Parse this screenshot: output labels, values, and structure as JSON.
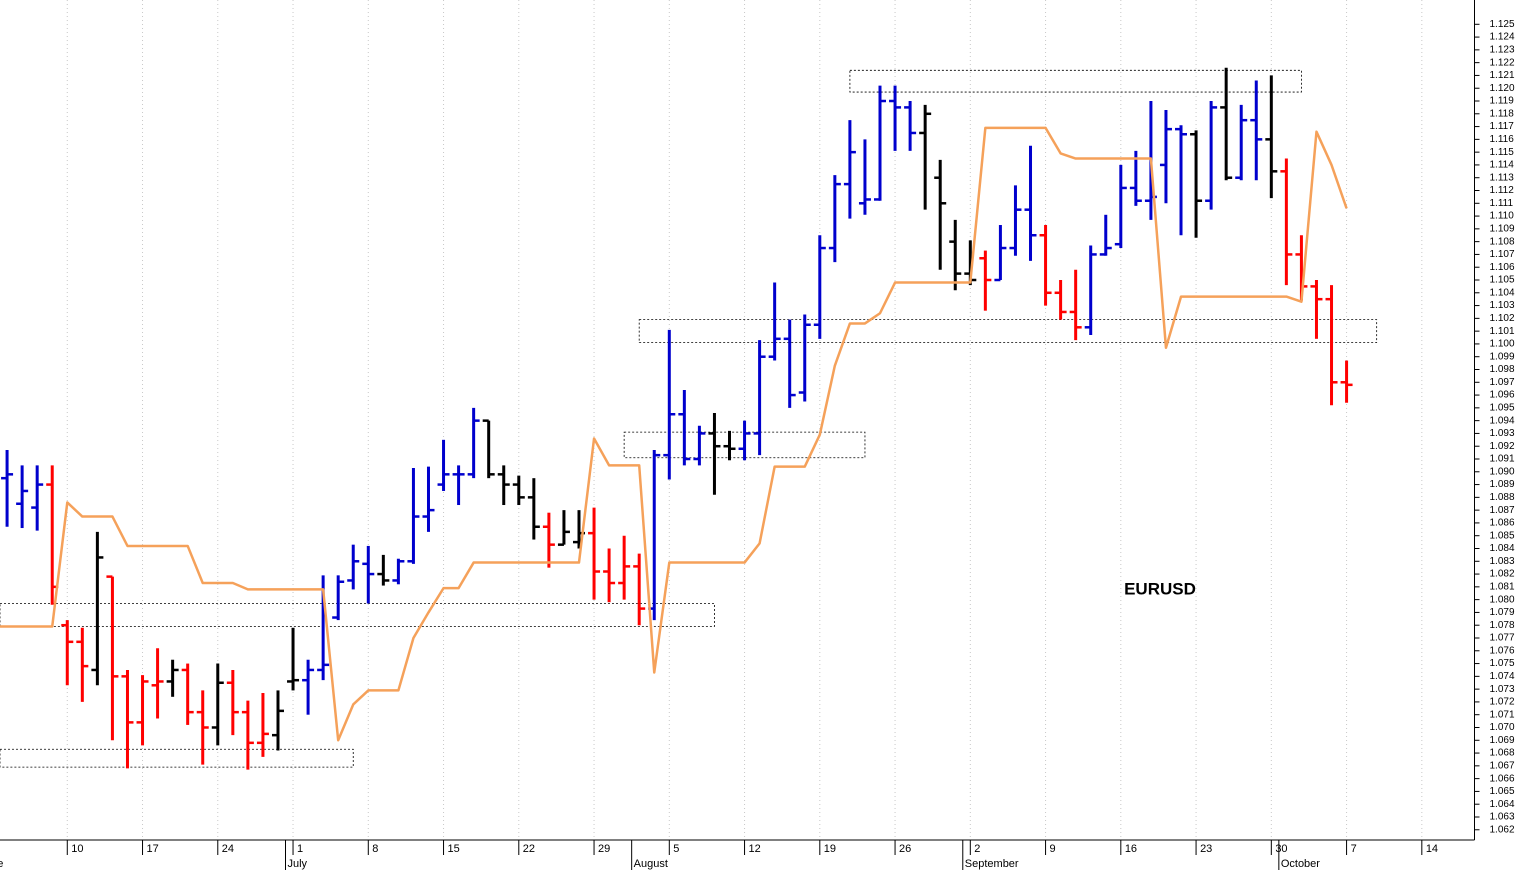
{
  "chart_data": {
    "type": "ohlc",
    "annotation": "EURUSD",
    "categories": [
      null,
      null,
      null,
      null,
      null,
      "10",
      null,
      null,
      null,
      null,
      "17",
      null,
      null,
      null,
      null,
      "24",
      null,
      null,
      null,
      null,
      "1",
      null,
      null,
      null,
      null,
      "8",
      null,
      null,
      null,
      null,
      "15",
      null,
      null,
      null,
      null,
      "22",
      null,
      null,
      null,
      null,
      "29",
      null,
      null,
      null,
      null,
      "5",
      null,
      null,
      null,
      null,
      "12",
      null,
      null,
      null,
      null,
      "19",
      null,
      null,
      null,
      null,
      "26",
      null,
      null,
      null,
      null,
      "2",
      null,
      null,
      null,
      null,
      "9",
      null,
      null,
      null,
      null,
      "16",
      null,
      null,
      null,
      null,
      "23",
      null,
      null,
      null,
      null,
      "30",
      null,
      null,
      null,
      null,
      "7",
      null,
      null,
      null,
      null,
      "14",
      null,
      null,
      null
    ],
    "month_labels": [
      "June",
      null,
      null,
      null,
      null,
      null,
      null,
      null,
      null,
      null,
      null,
      null,
      null,
      null,
      null,
      null,
      null,
      null,
      null,
      null,
      "July",
      null,
      null,
      null,
      null,
      null,
      null,
      null,
      null,
      null,
      null,
      null,
      null,
      null,
      null,
      null,
      null,
      null,
      null,
      null,
      null,
      null,
      null,
      "August",
      null,
      null,
      null,
      null,
      null,
      null,
      null,
      null,
      null,
      null,
      null,
      null,
      null,
      null,
      null,
      null,
      null,
      null,
      null,
      null,
      null,
      "September",
      null,
      null,
      null,
      null,
      null,
      null,
      null,
      null,
      null,
      null,
      null,
      null,
      null,
      null,
      null,
      null,
      null,
      null,
      null,
      null,
      "October",
      null,
      null,
      null,
      null,
      null,
      null,
      null,
      null,
      null,
      null,
      null,
      null
    ],
    "bars": {
      "open": [
        null,
        1.0895,
        1.0875,
        1.0872,
        1.089,
        1.078,
        1.0767,
        1.0745,
        1.0818,
        1.074,
        1.0704,
        1.0733,
        1.0736,
        1.0745,
        1.0712,
        1.07,
        1.0735,
        1.0712,
        1.0688,
        1.0694,
        1.0736,
        1.0737,
        1.0745,
        1.0786,
        1.0815,
        1.0828,
        1.082,
        1.0815,
        1.083,
        1.0865,
        1.089,
        1.0898,
        1.0898,
        1.094,
        1.0898,
        1.089,
        1.088,
        1.0857,
        1.0843,
        1.0845,
        1.0852,
        1.0822,
        1.0813,
        1.0826,
        1.0793,
        1.0913,
        1.0945,
        1.091,
        1.093,
        1.092,
        1.0918,
        1.093,
        1.099,
        1.1004,
        1.0962,
        1.1015,
        1.1075,
        1.1125,
        1.111,
        1.1113,
        1.119,
        1.1185,
        1.1165,
        1.113,
        1.108,
        1.1055,
        1.1067,
        1.105,
        1.1075,
        1.1105,
        1.1085,
        1.104,
        1.1025,
        1.1013,
        1.107,
        1.1078,
        1.1122,
        1.1112,
        1.114,
        1.1168,
        1.1164,
        1.1112,
        1.1185,
        1.113,
        1.1175,
        1.116,
        1.1135,
        1.107,
        1.1045,
        1.1035,
        1.097,
        null,
        null,
        null,
        null,
        null,
        null,
        null,
        null
      ],
      "high": [
        null,
        1.0917,
        1.0905,
        1.0905,
        1.0905,
        1.0784,
        1.0778,
        1.0853,
        1.0818,
        1.0745,
        1.0741,
        1.0762,
        1.0753,
        1.075,
        1.0729,
        1.075,
        1.0745,
        1.0721,
        1.0727,
        1.0729,
        1.0778,
        1.0753,
        1.0819,
        1.0819,
        1.0843,
        1.0842,
        1.0835,
        1.0832,
        1.0903,
        1.0904,
        1.0925,
        1.0905,
        1.095,
        1.094,
        1.0905,
        1.0897,
        1.0895,
        1.0868,
        1.087,
        1.087,
        1.0872,
        1.084,
        1.085,
        1.0836,
        1.0917,
        1.1011,
        1.0964,
        1.0936,
        1.0946,
        1.0932,
        1.094,
        1.1003,
        1.1048,
        1.1019,
        1.1023,
        1.1085,
        1.1132,
        1.1175,
        1.116,
        1.1202,
        1.1202,
        1.119,
        1.1187,
        1.1144,
        1.1097,
        1.1081,
        1.1073,
        1.1093,
        1.1124,
        1.1155,
        1.1093,
        1.105,
        1.1058,
        1.1077,
        1.1101,
        1.114,
        1.1151,
        1.119,
        1.1183,
        1.1171,
        1.1167,
        1.119,
        1.1216,
        1.1187,
        1.1206,
        1.121,
        1.1145,
        1.1085,
        1.105,
        1.1046,
        1.0987,
        null,
        null,
        null,
        null,
        null,
        null,
        null,
        null
      ],
      "low": [
        null,
        1.0857,
        1.0856,
        1.0854,
        1.0796,
        1.0733,
        1.072,
        1.0733,
        1.069,
        1.0668,
        1.0686,
        1.0707,
        1.0724,
        1.0702,
        1.0671,
        1.0686,
        1.0694,
        1.0667,
        1.0677,
        1.0682,
        1.0729,
        1.071,
        1.0737,
        1.0784,
        1.0808,
        1.0797,
        1.0811,
        1.0812,
        1.0828,
        1.0853,
        1.0885,
        1.0874,
        1.0895,
        1.0895,
        1.0874,
        1.0874,
        1.0847,
        1.0825,
        1.0843,
        1.084,
        1.08,
        1.0798,
        1.08,
        1.078,
        1.0784,
        1.0894,
        1.0905,
        1.0905,
        1.0882,
        1.0909,
        1.0909,
        1.0913,
        1.0987,
        1.095,
        1.0955,
        1.1004,
        1.1064,
        1.1098,
        1.1101,
        1.1112,
        1.1151,
        1.1151,
        1.1105,
        1.1058,
        1.1042,
        1.1046,
        1.1026,
        1.105,
        1.1069,
        1.1065,
        1.103,
        1.1019,
        1.1003,
        1.1007,
        1.1069,
        1.1075,
        1.1108,
        1.1097,
        1.111,
        1.1085,
        1.1083,
        1.1105,
        1.1128,
        1.1128,
        1.1128,
        1.1114,
        1.1046,
        1.1034,
        1.1004,
        1.0952,
        1.0954,
        null,
        null,
        null,
        null,
        null,
        null,
        null,
        null
      ],
      "close": [
        null,
        1.0898,
        1.0885,
        1.089,
        1.081,
        1.0767,
        1.0748,
        1.0833,
        1.074,
        1.0704,
        1.0736,
        1.0736,
        1.0745,
        1.0712,
        1.07,
        1.0735,
        1.0712,
        1.0688,
        1.0695,
        1.0713,
        1.0737,
        1.0745,
        1.0749,
        1.0814,
        1.083,
        1.082,
        1.0815,
        1.083,
        1.0865,
        1.087,
        1.0898,
        1.0898,
        1.094,
        1.0898,
        1.089,
        1.088,
        1.0857,
        1.0843,
        1.0853,
        1.0852,
        1.0822,
        1.0813,
        1.0826,
        1.0793,
        1.0913,
        1.0945,
        1.091,
        1.093,
        1.092,
        1.0918,
        1.093,
        1.099,
        1.1004,
        1.096,
        1.1015,
        1.1075,
        1.1125,
        1.115,
        1.1113,
        1.119,
        1.1185,
        1.1165,
        1.118,
        1.111,
        1.1055,
        1.105,
        1.105,
        1.1075,
        1.1105,
        1.1085,
        1.104,
        1.1025,
        1.1013,
        1.107,
        1.1075,
        1.1122,
        1.1112,
        1.1115,
        1.1168,
        1.1164,
        1.1112,
        1.1185,
        1.113,
        1.1175,
        1.116,
        1.1135,
        1.107,
        1.1045,
        1.1035,
        1.097,
        1.0968,
        null,
        null,
        null,
        null,
        null,
        null,
        null,
        null
      ],
      "colors": [
        null,
        "#0000cd",
        "#0000cd",
        "#0000cd",
        "#ff0000",
        "#ff0000",
        "#ff0000",
        "#000000",
        "#ff0000",
        "#ff0000",
        "#ff0000",
        "#ff0000",
        "#000000",
        "#ff0000",
        "#ff0000",
        "#000000",
        "#ff0000",
        "#ff0000",
        "#ff0000",
        "#000000",
        "#000000",
        "#0000cd",
        "#0000cd",
        "#0000cd",
        "#0000cd",
        "#0000cd",
        "#000000",
        "#0000cd",
        "#0000cd",
        "#0000cd",
        "#0000cd",
        "#0000cd",
        "#0000cd",
        "#000000",
        "#000000",
        "#000000",
        "#000000",
        "#ff0000",
        "#000000",
        "#000000",
        "#ff0000",
        "#ff0000",
        "#ff0000",
        "#ff0000",
        "#0000cd",
        "#0000cd",
        "#0000cd",
        "#0000cd",
        "#000000",
        "#000000",
        "#0000cd",
        "#0000cd",
        "#0000cd",
        "#0000cd",
        "#0000cd",
        "#0000cd",
        "#0000cd",
        "#0000cd",
        "#0000cd",
        "#0000cd",
        "#0000cd",
        "#0000cd",
        "#000000",
        "#000000",
        "#000000",
        "#000000",
        "#ff0000",
        "#0000cd",
        "#0000cd",
        "#0000cd",
        "#ff0000",
        "#ff0000",
        "#ff0000",
        "#0000cd",
        "#0000cd",
        "#0000cd",
        "#0000cd",
        "#0000cd",
        "#0000cd",
        "#0000cd",
        "#000000",
        "#0000cd",
        "#000000",
        "#0000cd",
        "#0000cd",
        "#000000",
        "#ff0000",
        "#ff0000",
        "#ff0000",
        "#ff0000",
        "#ff0000",
        null,
        null,
        null,
        null,
        null,
        null,
        null,
        null
      ]
    },
    "line": {
      "color": "#f5a15a",
      "values": [
        1.0779,
        1.0779,
        1.0779,
        1.0779,
        1.0779,
        1.0876,
        1.0865,
        1.0865,
        1.0865,
        1.0842,
        1.0842,
        1.0842,
        1.0842,
        1.0842,
        1.0813,
        1.0813,
        1.0813,
        1.0808,
        1.0808,
        1.0808,
        1.0808,
        1.0808,
        1.0808,
        1.069,
        1.0718,
        1.0729,
        1.0729,
        1.0729,
        1.077,
        1.079,
        1.0809,
        1.0809,
        1.0829,
        1.0829,
        1.0829,
        1.0829,
        1.0829,
        1.0829,
        1.0829,
        1.0829,
        1.0926,
        1.0905,
        1.0905,
        1.0905,
        1.0743,
        1.0829,
        1.0829,
        1.0829,
        1.0829,
        1.0829,
        1.0829,
        1.0844,
        1.0904,
        1.0904,
        1.0904,
        1.0929,
        1.0983,
        1.1016,
        1.1016,
        1.1024,
        1.1048,
        1.1048,
        1.1048,
        1.1048,
        1.1048,
        1.1048,
        1.1169,
        1.1169,
        1.1169,
        1.1169,
        1.1169,
        1.1149,
        1.1145,
        1.1145,
        1.1145,
        1.1145,
        1.1145,
        1.1145,
        1.0997,
        1.1037,
        1.1037,
        1.1037,
        1.1037,
        1.1037,
        1.1037,
        1.1037,
        1.1037,
        1.1033,
        1.1166,
        1.114,
        1.1106,
        null,
        null,
        null,
        null,
        null,
        null,
        null,
        null
      ]
    },
    "zones": [
      {
        "start": 57,
        "end": 87,
        "low": 1.1197,
        "high": 1.1214
      },
      {
        "start": 43,
        "end": 92,
        "low": 1.1001,
        "high": 1.1019
      },
      {
        "start": 42,
        "end": 58,
        "low": 1.0911,
        "high": 1.0931
      },
      {
        "start": 0,
        "end": 48,
        "low": 1.0779,
        "high": 1.0797
      },
      {
        "start": 0,
        "end": 24,
        "low": 1.0669,
        "high": 1.0683
      }
    ],
    "ylim": [
      1.0612,
      1.1269
    ],
    "yticks": [
      1.062,
      1.063,
      1.064,
      1.065,
      1.066,
      1.067,
      1.068,
      1.069,
      {
        "value": 1.07,
        "label": "1.070"
      },
      1.071,
      1.072,
      1.073,
      1.074,
      1.075,
      1.076,
      1.077,
      1.078,
      1.079,
      {
        "value": 1.08,
        "label": "1.080"
      },
      1.081,
      1.082,
      1.083,
      1.084,
      1.085,
      1.086,
      1.087,
      1.088,
      1.089,
      {
        "value": 1.09,
        "label": "1.090"
      },
      1.091,
      1.092,
      1.093,
      1.094,
      1.095,
      1.096,
      1.097,
      1.098,
      1.099,
      {
        "value": 1.1,
        "label": "1.100"
      },
      1.101,
      1.102,
      1.103,
      1.104,
      1.105,
      1.106,
      1.107,
      1.108,
      1.109,
      {
        "value": 1.11,
        "label": "1.110"
      },
      1.111,
      1.112,
      1.113,
      1.114,
      1.115,
      1.116,
      1.117,
      1.118,
      1.119,
      {
        "value": 1.12,
        "label": "1.120"
      },
      1.121,
      1.122,
      1.123,
      1.124,
      1.125
    ],
    "grid": true
  }
}
